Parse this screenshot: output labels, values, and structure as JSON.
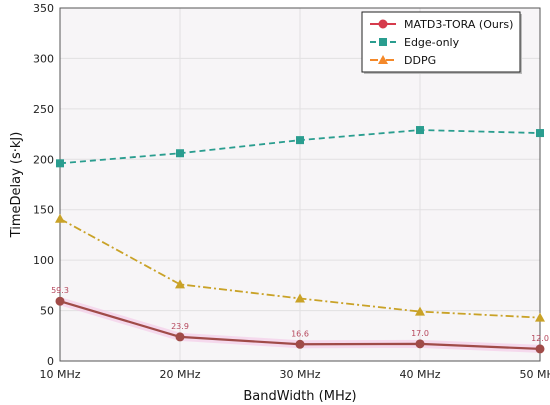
{
  "chart_data": {
    "type": "line",
    "xlabel": "BandWidth (MHz)",
    "ylabel": "TimeDelay (s·kJ)",
    "categories": [
      "10 MHz",
      "20 MHz",
      "30 MHz",
      "40 MHz",
      "50 MHz"
    ],
    "ylim": [
      0,
      350
    ],
    "yticks": [
      0,
      50,
      100,
      150,
      200,
      250,
      300,
      350
    ],
    "grid": true,
    "legend_position": "top-right",
    "series": [
      {
        "name": "MATD3-TORA (Ours)",
        "legend_color": "#d63b4c",
        "color": "#a04b48",
        "marker": "circle",
        "linestyle": "solid",
        "values": [
          59.3,
          23.9,
          16.6,
          17.0,
          12.0
        ],
        "data_labels": [
          "59.3",
          "23.9",
          "16.6",
          "17.0",
          "12.0"
        ]
      },
      {
        "name": "Edge-only",
        "legend_color": "#2a9d8f",
        "color": "#2a9d8f",
        "marker": "square",
        "linestyle": "dashed",
        "values": [
          196,
          206,
          219,
          229,
          226
        ]
      },
      {
        "name": "DDPG",
        "legend_color": "#f4892a",
        "color": "#c9a227",
        "marker": "triangle",
        "linestyle": "dashdot",
        "values": [
          141,
          76,
          62,
          49,
          43
        ]
      }
    ]
  }
}
